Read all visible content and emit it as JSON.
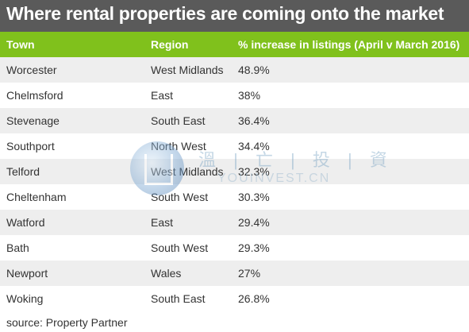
{
  "title": "Where rental properties are coming onto the market",
  "source": "source: Property Partner",
  "watermark": {
    "cn": "溫 | 亡 | 投 | 資",
    "en": "YOUINVEST.CN"
  },
  "colors": {
    "title_bg": "#5a5a5a",
    "header_bg": "#80c11c",
    "stripe": "#eeeeee"
  },
  "chart_data": {
    "type": "table",
    "columns": [
      "Town",
      "Region",
      "% increase in listings (April v March 2016)"
    ],
    "rows": [
      [
        "Worcester",
        "West Midlands",
        "48.9%"
      ],
      [
        "Chelmsford",
        "East",
        "38%"
      ],
      [
        "Stevenage",
        "South East",
        "36.4%"
      ],
      [
        "Southport",
        "North West",
        "34.4%"
      ],
      [
        "Telford",
        "West Midlands",
        "32.3%"
      ],
      [
        "Cheltenham",
        "South West",
        "30.3%"
      ],
      [
        "Watford",
        "East",
        "29.4%"
      ],
      [
        "Bath",
        "South West",
        "29.3%"
      ],
      [
        "Newport",
        "Wales",
        "27%"
      ],
      [
        "Woking",
        "South East",
        "26.8%"
      ]
    ]
  }
}
